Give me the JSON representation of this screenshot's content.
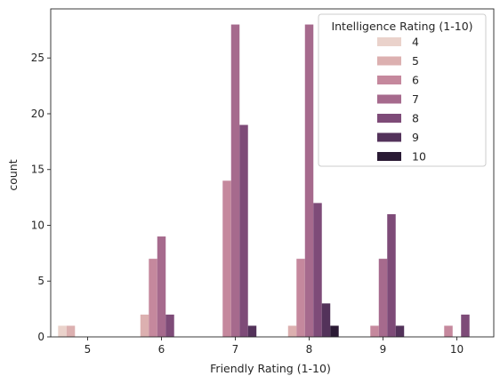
{
  "chart_data": {
    "type": "bar",
    "xlabel": "Friendly Rating (1-10)",
    "ylabel": "count",
    "categories": [
      "5",
      "6",
      "7",
      "8",
      "9",
      "10"
    ],
    "yticks": [
      0,
      5,
      10,
      15,
      20,
      25
    ],
    "ylim": [
      0,
      29.4
    ],
    "grid": false,
    "legend": {
      "title": "Intelligence Rating (1-10)",
      "position": "top-right"
    },
    "series": [
      {
        "name": "4",
        "color": "#ead2cb",
        "values": [
          1,
          0,
          0,
          0,
          0,
          0
        ]
      },
      {
        "name": "5",
        "color": "#dcb0b0",
        "values": [
          1,
          2,
          0,
          1,
          0,
          0
        ]
      },
      {
        "name": "6",
        "color": "#c5889d",
        "values": [
          0,
          7,
          14,
          7,
          1,
          1
        ]
      },
      {
        "name": "7",
        "color": "#a66a8d",
        "values": [
          0,
          9,
          28,
          28,
          7,
          0
        ]
      },
      {
        "name": "8",
        "color": "#7e4b78",
        "values": [
          0,
          2,
          19,
          12,
          11,
          2
        ]
      },
      {
        "name": "9",
        "color": "#53325a",
        "values": [
          0,
          0,
          1,
          3,
          1,
          0
        ]
      },
      {
        "name": "10",
        "color": "#2a1a34",
        "values": [
          0,
          0,
          0,
          1,
          0,
          0
        ]
      }
    ]
  }
}
